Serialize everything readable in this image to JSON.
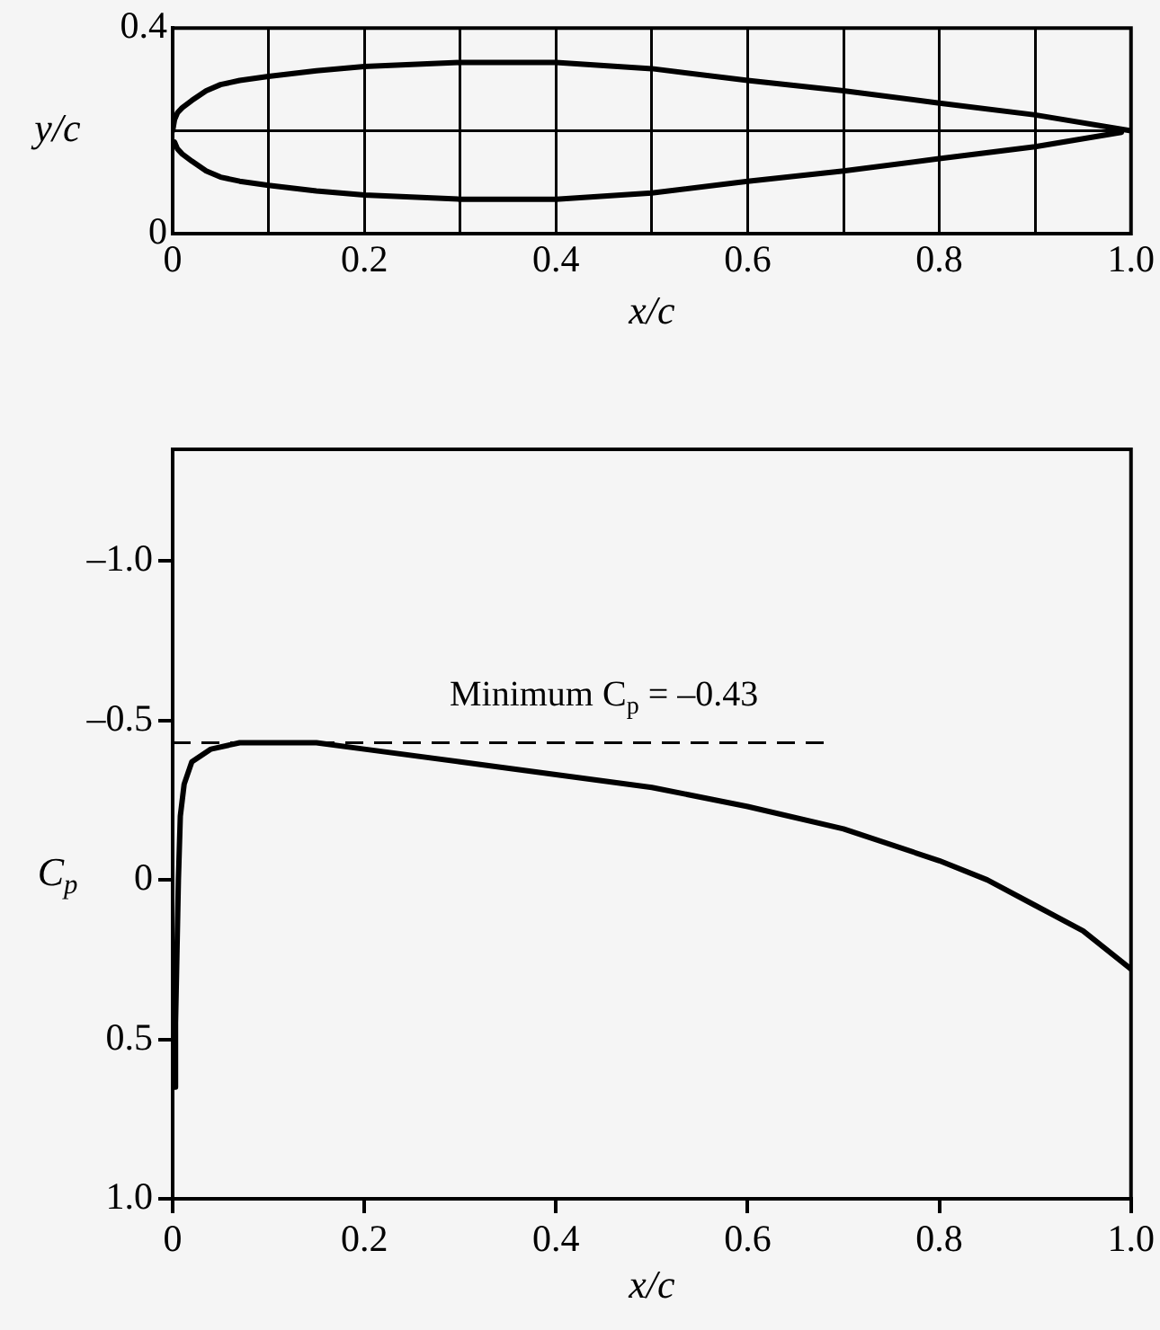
{
  "chart_data": [
    {
      "type": "line",
      "xlabel": "x/c",
      "ylabel": "y/c",
      "xlim": [
        0,
        1.0
      ],
      "ylim": [
        0,
        0.4
      ],
      "xticks": [
        0,
        {
          "value": 0.1,
          "label": null
        },
        0.2,
        {
          "value": 0.3,
          "label": null
        },
        0.4,
        {
          "value": 0.5,
          "label": null
        },
        0.6,
        {
          "value": 0.7,
          "label": null
        },
        0.8,
        {
          "value": 0.9,
          "label": null
        },
        {
          "value": 1.0,
          "label": "1.0"
        }
      ],
      "yticks": [
        0,
        0.4
      ],
      "ref_lines": [
        {
          "axis": "y",
          "value": 0.2,
          "line_style": "solid",
          "color": "#000000"
        }
      ],
      "grid": true,
      "legend": false,
      "marker": "none",
      "line_style": "solid",
      "series": [
        {
          "color": "#000000",
          "x": [
            0,
            0.002,
            0.005,
            0.01,
            0.02,
            0.035,
            0.05,
            0.07,
            0.1,
            0.15,
            0.2,
            0.3,
            0.4,
            0.5,
            0.6,
            0.7,
            0.8,
            0.9,
            1.0
          ],
          "values": [
            0.2,
            0.222,
            0.235,
            0.245,
            0.259,
            0.278,
            0.29,
            0.298,
            0.306,
            0.317,
            0.325,
            0.333,
            0.333,
            0.321,
            0.298,
            0.278,
            0.254,
            0.231,
            0.2
          ]
        },
        {
          "color": "#000000",
          "x": [
            0.002,
            0.005,
            0.01,
            0.02,
            0.035,
            0.05,
            0.07,
            0.1,
            0.15,
            0.2,
            0.3,
            0.4,
            0.5,
            0.6,
            0.7,
            0.8,
            0.9,
            0.99
          ],
          "values": [
            0.178,
            0.165,
            0.155,
            0.141,
            0.122,
            0.11,
            0.102,
            0.094,
            0.083,
            0.075,
            0.067,
            0.067,
            0.079,
            0.102,
            0.122,
            0.146,
            0.169,
            0.197
          ]
        }
      ]
    },
    {
      "type": "line",
      "xlabel": "x/c",
      "ylabel": "C$_{p}$",
      "xlim": [
        0,
        1.0
      ],
      "ylim": [
        1.0,
        -1.35
      ],
      "xticks": [
        0,
        0.2,
        0.4,
        0.6,
        0.8,
        {
          "value": 1.0,
          "label": "1.0"
        }
      ],
      "yticks": [
        {
          "value": -1.0,
          "label": "–1.0"
        },
        {
          "value": -0.5,
          "label": "–0.5"
        },
        0,
        0.5,
        {
          "value": 1.0,
          "label": "1.0"
        }
      ],
      "grid": false,
      "legend": false,
      "marker": "none",
      "line_style": "solid",
      "ref_lines": [
        {
          "axis": "y",
          "value": -0.43,
          "label": "Minimum C$_{p}$ = –0.43",
          "line_style": "dashed",
          "color": "#000000"
        }
      ],
      "series": [
        {
          "color": "#000000",
          "x": [
            0.002,
            0.003,
            0.004,
            0.006,
            0.008,
            0.012,
            0.02,
            0.04,
            0.07,
            0.1,
            0.15,
            0.2,
            0.3,
            0.4,
            0.5,
            0.6,
            0.7,
            0.8,
            0.85,
            0.9,
            0.95,
            1.0
          ],
          "values": [
            0.65,
            0.45,
            0.3,
            0,
            -0.2,
            -0.3,
            -0.37,
            -0.41,
            -0.43,
            -0.43,
            -0.43,
            -0.41,
            -0.37,
            -0.33,
            -0.29,
            -0.23,
            -0.16,
            -0.06,
            0,
            0.08,
            0.16,
            0.28
          ]
        }
      ]
    }
  ]
}
